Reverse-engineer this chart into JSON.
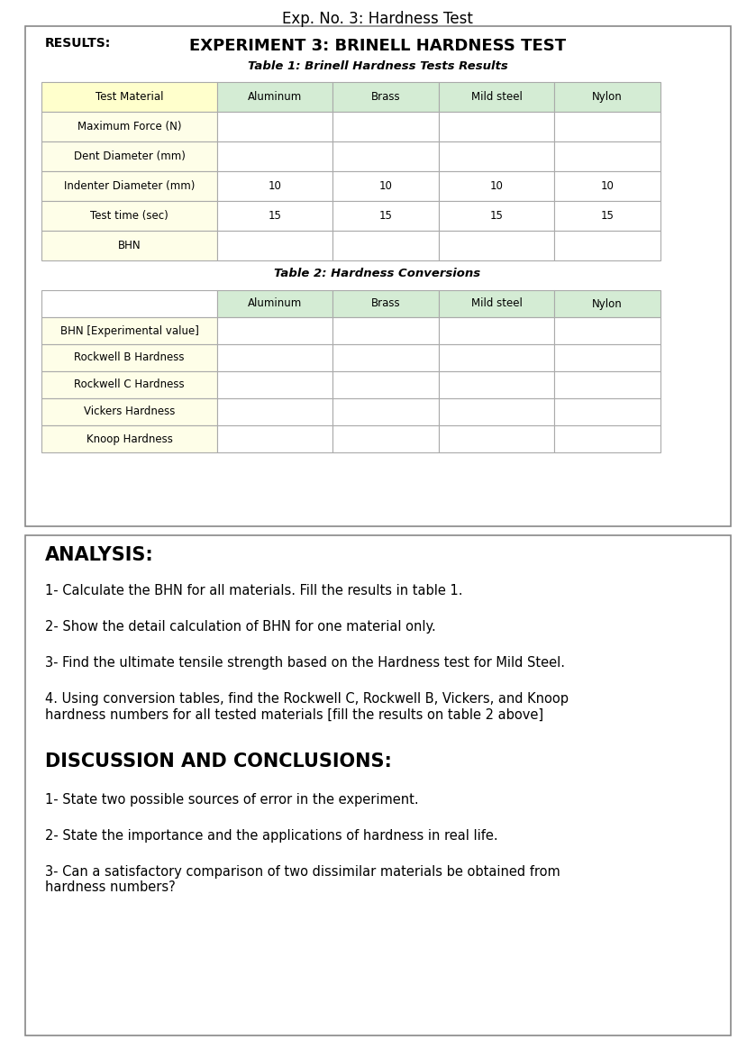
{
  "page_title": "Exp. No. 3: Hardness Test",
  "experiment_title": "EXPERIMENT 3: BRINELL HARDNESS TEST",
  "results_label": "RESULTS:",
  "table1_title": "Table 1: Brinell Hardness Tests Results",
  "table1_col_header": [
    "Test Material",
    "Aluminum",
    "Brass",
    "Mild steel",
    "Nylon"
  ],
  "table1_rows": [
    [
      "Maximum Force (N)",
      "",
      "",
      "",
      ""
    ],
    [
      "Dent Diameter (mm)",
      "",
      "",
      "",
      ""
    ],
    [
      "Indenter Diameter (mm)",
      "10",
      "10",
      "10",
      "10"
    ],
    [
      "Test time (sec)",
      "15",
      "15",
      "15",
      "15"
    ],
    [
      "BHN",
      "",
      "",
      "",
      ""
    ]
  ],
  "table2_title": "Table 2: Hardness Conversions",
  "table2_col_header": [
    "",
    "Aluminum",
    "Brass",
    "Mild steel",
    "Nylon"
  ],
  "table2_rows": [
    [
      "BHN [Experimental value]",
      "",
      "",
      "",
      ""
    ],
    [
      "Rockwell B Hardness",
      "",
      "",
      "",
      ""
    ],
    [
      "Rockwell C Hardness",
      "",
      "",
      "",
      ""
    ],
    [
      "Vickers Hardness",
      "",
      "",
      "",
      ""
    ],
    [
      "Knoop Hardness",
      "",
      "",
      "",
      ""
    ]
  ],
  "analysis_title": "ANALYSIS:",
  "analysis_items": [
    "1- Calculate the BHN for all materials. Fill the results in table 1.",
    "2- Show the detail calculation of BHN for one material only.",
    "3- Find the ultimate tensile strength based on the Hardness test for Mild Steel.",
    "4. Using conversion tables, find the Rockwell C, Rockwell B, Vickers, and Knoop\nhardness numbers for all tested materials [fill the results on table 2 above]"
  ],
  "discussion_title": "DISCUSSION AND CONCLUSIONS:",
  "discussion_items": [
    "1- State two possible sources of error in the experiment.",
    "2- State the importance and the applications of hardness in real life.",
    "3- Can a satisfactory comparison of two dissimilar materials be obtained from\nhardness numbers?"
  ],
  "bg_color": "#ffffff",
  "table1_header_col0": "#ffffcc",
  "table1_header_coln": "#d4ecd4",
  "table1_row_col0": "#fefee8",
  "table1_row_coln": "#ffffff",
  "table2_header_col0": "#ffffff",
  "table2_header_coln": "#d4ecd4",
  "table2_row_col0": "#fefee8",
  "table2_row_coln": "#ffffff",
  "cell_border": "#aaaaaa",
  "box_border": "#888888",
  "page_title_fontsize": 12,
  "exp_title_fontsize": 13,
  "results_fontsize": 10,
  "table_title_fontsize": 9.5,
  "table_content_fontsize": 8.5,
  "analysis_title_fontsize": 15,
  "analysis_content_fontsize": 10.5,
  "discussion_title_fontsize": 15,
  "discussion_content_fontsize": 10.5
}
